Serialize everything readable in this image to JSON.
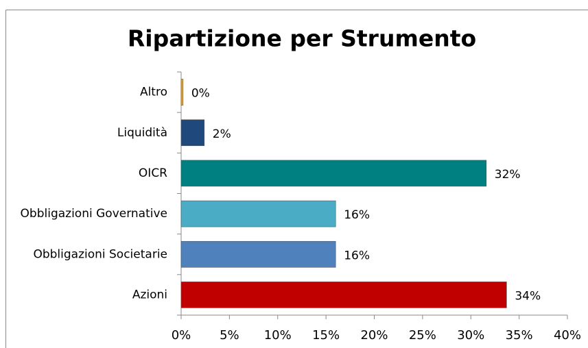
{
  "chart_data": {
    "type": "bar",
    "orientation": "horizontal",
    "title": "Ripartizione per Strumento",
    "categories": [
      "Altro",
      "Liquidità",
      "OICR",
      "Obbligazioni Governative",
      "Obbligazioni Societarie",
      "Azioni"
    ],
    "values": [
      0.2,
      2.4,
      31.6,
      16.0,
      16.0,
      33.7
    ],
    "value_labels": [
      "0%",
      "2%",
      "32%",
      "16%",
      "16%",
      "34%"
    ],
    "colors": [
      "#f5a623",
      "#1f497d",
      "#008080",
      "#4bacc6",
      "#4f81bd",
      "#c00000"
    ],
    "xlim": [
      0,
      40
    ],
    "xticks": [
      {
        "value": 0,
        "label": "0%"
      },
      {
        "value": 5,
        "label": "5%"
      },
      {
        "value": 10,
        "label": "10%"
      },
      {
        "value": 15,
        "label": "15%"
      },
      {
        "value": 20,
        "label": "20%"
      },
      {
        "value": 25,
        "label": "25%"
      },
      {
        "value": 30,
        "label": "30%"
      },
      {
        "value": 35,
        "label": "35%"
      },
      {
        "value": 40,
        "label": "40%"
      }
    ],
    "grid": false
  }
}
